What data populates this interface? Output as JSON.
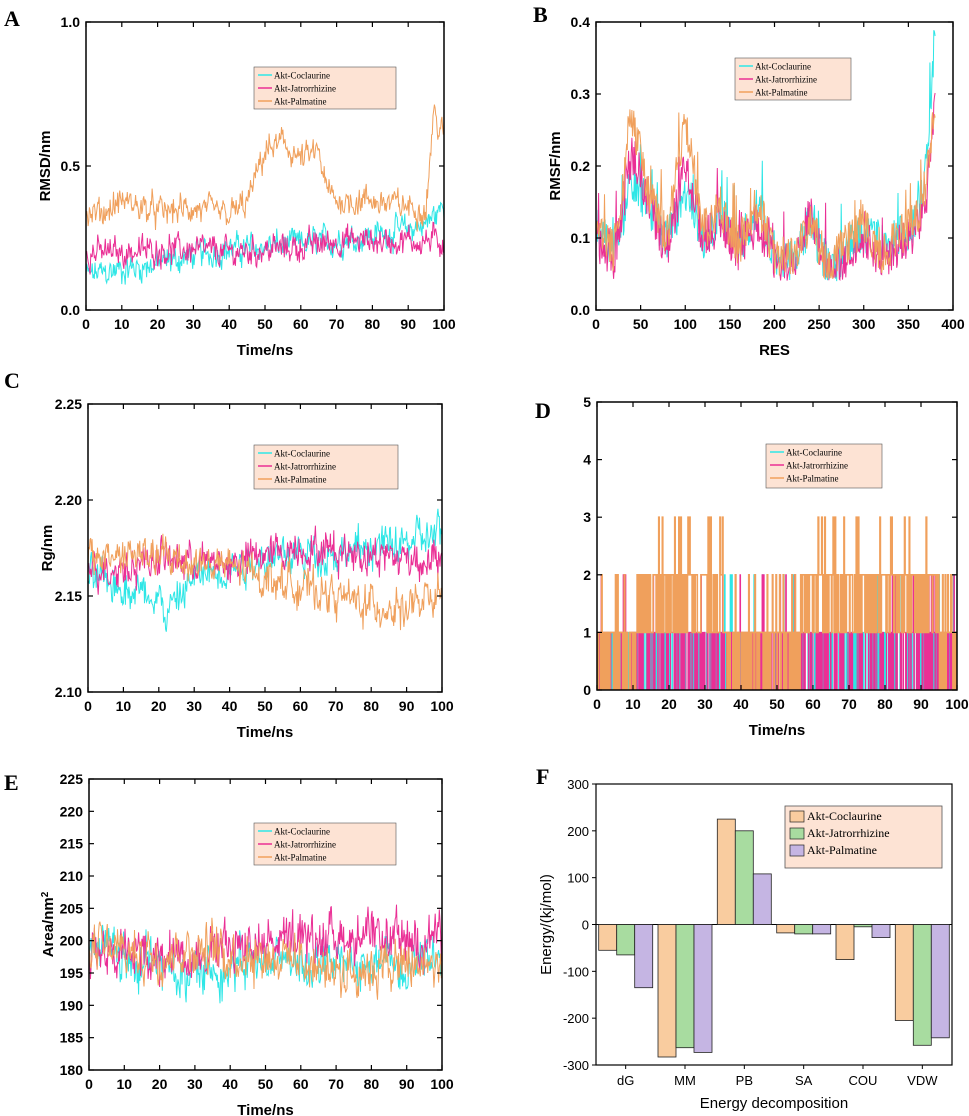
{
  "colors": {
    "coclaurine": "#2ee6e6",
    "jatrorrhizine": "#ea2f95",
    "palmatine": "#f0a05c",
    "bar_coclaurine": "#f9cc9f",
    "bar_jatrorrhizine": "#a8dca0",
    "bar_palmatine": "#c5b5e3",
    "legend_bg": "#fde3d4"
  },
  "chart_data": [
    {
      "panel": "A",
      "type": "line",
      "xlabel": "Time/ns",
      "ylabel": "RMSD/nm",
      "xlim": [
        0,
        100
      ],
      "ylim": [
        0,
        1.0
      ],
      "xticks": [
        "0",
        "10",
        "20",
        "30",
        "40",
        "50",
        "60",
        "70",
        "80",
        "90",
        "100"
      ],
      "yticks": [
        "0.0",
        "0.5",
        "1.0"
      ],
      "legend": [
        "Akt-Coclaurine",
        "Akt-Jatrorrhizine",
        "Akt-Palmatine"
      ],
      "series": [
        {
          "name": "Akt-Coclaurine",
          "x": [
            0,
            10,
            20,
            30,
            40,
            50,
            60,
            70,
            80,
            90,
            95,
            100
          ],
          "y": [
            0.12,
            0.14,
            0.16,
            0.19,
            0.21,
            0.22,
            0.23,
            0.24,
            0.26,
            0.28,
            0.3,
            0.36
          ]
        },
        {
          "name": "Akt-Jatrorrhizine",
          "x": [
            0,
            10,
            20,
            30,
            40,
            50,
            60,
            70,
            80,
            90,
            100
          ],
          "y": [
            0.2,
            0.2,
            0.21,
            0.21,
            0.2,
            0.21,
            0.22,
            0.24,
            0.24,
            0.24,
            0.24
          ]
        },
        {
          "name": "Akt-Palmatine",
          "x": [
            0,
            5,
            10,
            20,
            30,
            40,
            45,
            48,
            50,
            55,
            60,
            65,
            67,
            70,
            80,
            90,
            95,
            97,
            100
          ],
          "y": [
            0.33,
            0.34,
            0.38,
            0.34,
            0.35,
            0.33,
            0.37,
            0.48,
            0.55,
            0.58,
            0.52,
            0.55,
            0.42,
            0.38,
            0.38,
            0.36,
            0.35,
            0.68,
            0.6
          ]
        }
      ]
    },
    {
      "panel": "B",
      "type": "line",
      "xlabel": "RES",
      "ylabel": "RMSF/nm",
      "xlim": [
        0,
        400
      ],
      "ylim": [
        0,
        0.4
      ],
      "xticks": [
        "0",
        "50",
        "100",
        "150",
        "200",
        "250",
        "300",
        "350",
        "400"
      ],
      "yticks": [
        "0.0",
        "0.1",
        "0.2",
        "0.3",
        "0.4"
      ],
      "legend": [
        "Akt-Coclaurine",
        "Akt-Jatrorrhizine",
        "Akt-Palmatine"
      ],
      "series": [
        {
          "name": "Akt-Coclaurine",
          "x": [
            0,
            20,
            40,
            60,
            80,
            100,
            120,
            140,
            160,
            180,
            200,
            220,
            240,
            260,
            280,
            300,
            320,
            340,
            360,
            370,
            380
          ],
          "y": [
            0.12,
            0.08,
            0.18,
            0.14,
            0.09,
            0.17,
            0.1,
            0.13,
            0.09,
            0.14,
            0.08,
            0.07,
            0.12,
            0.06,
            0.08,
            0.11,
            0.09,
            0.1,
            0.12,
            0.2,
            0.39
          ]
        },
        {
          "name": "Akt-Jatrorrhizine",
          "x": [
            0,
            20,
            40,
            60,
            80,
            100,
            120,
            140,
            160,
            180,
            200,
            220,
            240,
            260,
            280,
            300,
            320,
            340,
            360,
            370,
            380
          ],
          "y": [
            0.1,
            0.07,
            0.22,
            0.15,
            0.08,
            0.2,
            0.1,
            0.12,
            0.08,
            0.12,
            0.07,
            0.06,
            0.14,
            0.05,
            0.07,
            0.1,
            0.07,
            0.09,
            0.11,
            0.15,
            0.3
          ]
        },
        {
          "name": "Akt-Palmatine",
          "x": [
            0,
            20,
            40,
            60,
            80,
            100,
            120,
            140,
            160,
            180,
            200,
            220,
            240,
            260,
            280,
            300,
            320,
            340,
            360,
            370,
            380
          ],
          "y": [
            0.11,
            0.08,
            0.27,
            0.16,
            0.1,
            0.27,
            0.11,
            0.14,
            0.09,
            0.15,
            0.08,
            0.07,
            0.12,
            0.06,
            0.09,
            0.12,
            0.08,
            0.1,
            0.13,
            0.18,
            0.28
          ]
        }
      ]
    },
    {
      "panel": "C",
      "type": "line",
      "xlabel": "Time/ns",
      "ylabel": "Rg/nm",
      "xlim": [
        0,
        100
      ],
      "ylim": [
        2.1,
        2.25
      ],
      "xticks": [
        "0",
        "10",
        "20",
        "30",
        "40",
        "50",
        "60",
        "70",
        "80",
        "90",
        "100"
      ],
      "yticks": [
        "2.10",
        "2.15",
        "2.20",
        "2.25"
      ],
      "legend": [
        "Akt-Coclaurine",
        "Akt-Jatrorrhizine",
        "Akt-Palmatine"
      ],
      "series": [
        {
          "name": "Akt-Coclaurine",
          "x": [
            0,
            10,
            20,
            22,
            30,
            40,
            50,
            60,
            70,
            80,
            90,
            100
          ],
          "y": [
            2.16,
            2.155,
            2.15,
            2.14,
            2.16,
            2.165,
            2.17,
            2.172,
            2.172,
            2.175,
            2.178,
            2.182
          ]
        },
        {
          "name": "Akt-Jatrorrhizine",
          "x": [
            0,
            10,
            20,
            30,
            40,
            50,
            60,
            70,
            80,
            90,
            100
          ],
          "y": [
            2.165,
            2.165,
            2.17,
            2.168,
            2.166,
            2.172,
            2.175,
            2.174,
            2.172,
            2.17,
            2.168
          ]
        },
        {
          "name": "Akt-Palmatine",
          "x": [
            0,
            10,
            20,
            30,
            40,
            50,
            60,
            70,
            80,
            90,
            100
          ],
          "y": [
            2.17,
            2.172,
            2.17,
            2.168,
            2.165,
            2.16,
            2.155,
            2.15,
            2.145,
            2.143,
            2.15
          ]
        }
      ]
    },
    {
      "panel": "D",
      "type": "line",
      "xlabel": "Time/ns",
      "ylabel": "",
      "xlim": [
        0,
        100
      ],
      "ylim": [
        0,
        5
      ],
      "xticks": [
        "0",
        "10",
        "20",
        "30",
        "40",
        "50",
        "60",
        "70",
        "80",
        "90",
        "100"
      ],
      "yticks": [
        "0",
        "1",
        "2",
        "3",
        "4",
        "5"
      ],
      "legend": [
        "Akt-Coclaurine",
        "Akt-Jatrorrhizine",
        "Akt-Palmatine"
      ],
      "series": [
        {
          "name": "Akt-Coclaurine",
          "x": [
            0,
            100
          ],
          "y": [
            1,
            1
          ]
        },
        {
          "name": "Akt-Jatrorrhizine",
          "x": [
            0,
            100
          ],
          "y": [
            1,
            1
          ]
        },
        {
          "name": "Akt-Palmatine",
          "x": [
            0,
            22,
            48,
            65,
            90,
            100
          ],
          "y": [
            1,
            2,
            1,
            2,
            2,
            1
          ]
        }
      ]
    },
    {
      "panel": "E",
      "type": "line",
      "xlabel": "Time/ns",
      "ylabel": "Area/nm",
      "ylabel_sup": "2",
      "xlim": [
        0,
        100
      ],
      "ylim": [
        180,
        225
      ],
      "xticks": [
        "0",
        "10",
        "20",
        "30",
        "40",
        "50",
        "60",
        "70",
        "80",
        "90",
        "100"
      ],
      "yticks": [
        "180",
        "185",
        "190",
        "195",
        "200",
        "205",
        "210",
        "215",
        "220",
        "225"
      ],
      "legend": [
        "Akt-Coclaurine",
        "Akt-Jatrorrhizine",
        "Akt-Palmatine"
      ],
      "series": [
        {
          "name": "Akt-Coclaurine",
          "x": [
            0,
            10,
            20,
            30,
            40,
            50,
            60,
            70,
            80,
            90,
            100
          ],
          "y": [
            200,
            197,
            196,
            195,
            196,
            197,
            197,
            196,
            196,
            197,
            198
          ]
        },
        {
          "name": "Akt-Jatrorrhizine",
          "x": [
            0,
            10,
            20,
            30,
            40,
            50,
            60,
            70,
            80,
            90,
            100
          ],
          "y": [
            199,
            198,
            198,
            198,
            199,
            200,
            200,
            201,
            200,
            200,
            201
          ]
        },
        {
          "name": "Akt-Palmatine",
          "x": [
            0,
            10,
            20,
            30,
            40,
            50,
            60,
            70,
            80,
            90,
            100
          ],
          "y": [
            199,
            198,
            198,
            199,
            198,
            198,
            197,
            195,
            196,
            196,
            196
          ]
        }
      ]
    },
    {
      "panel": "F",
      "type": "bar",
      "xlabel": "Energy decomposition",
      "ylabel": "Energy/(kj/mol)",
      "ylim": [
        -300,
        300
      ],
      "yticks": [
        "-300",
        "-200",
        "-100",
        "0",
        "100",
        "200",
        "300"
      ],
      "categories": [
        "dG",
        "MM",
        "PB",
        "SA",
        "COU",
        "VDW"
      ],
      "legend": [
        "Akt-Coclaurine",
        "Akt-Jatrorrhizine",
        "Akt-Palmatine"
      ],
      "series": [
        {
          "name": "Akt-Coclaurine",
          "values": [
            -55,
            -283,
            225,
            -18,
            -75,
            -205
          ]
        },
        {
          "name": "Akt-Jatrorrhizine",
          "values": [
            -65,
            -263,
            200,
            -20,
            -5,
            -258
          ]
        },
        {
          "name": "Akt-Palmatine",
          "values": [
            -135,
            -273,
            108,
            -20,
            -28,
            -242
          ]
        }
      ]
    }
  ],
  "panel_letters": [
    "A",
    "B",
    "C",
    "D",
    "E",
    "F"
  ]
}
